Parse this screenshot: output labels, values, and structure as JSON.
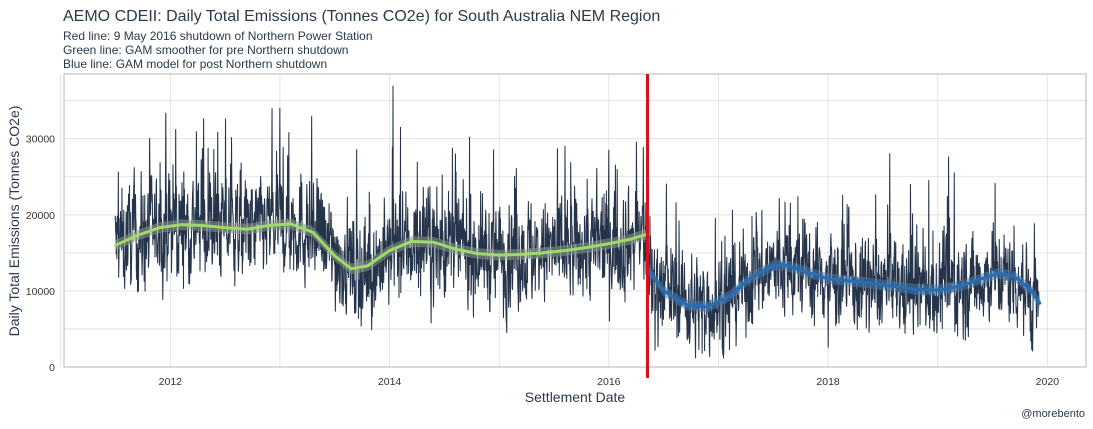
{
  "title": "AEMO CDEII: Daily Total Emissions (Tonnes CO2e) for South Australia NEM Region",
  "subtitle_lines": [
    "Red line:  9 May 2016 shutdown of Northern Power Station",
    "Green line: GAM smoother for pre Northern shutdown",
    "Blue line: GAM model for post Northern shutdown"
  ],
  "caption": "@morebento",
  "colors": {
    "raw": "#25344a",
    "pre_gam": "#9fd86b",
    "pre_band": "#8a9a8a",
    "post_gam": "#2a6db0",
    "post_band": "#4a7fb5",
    "shutdown_line": "#d8101c",
    "grid": "#dedede",
    "panel_border": "#b5b5b5"
  },
  "chart_data": {
    "type": "line",
    "xlabel": "Settlement Date",
    "ylabel": "Daily Total Emissions (Tonnes CO2e)",
    "xlim": [
      "2011-01-12",
      "2020-05-09"
    ],
    "ylim": [
      0,
      38500
    ],
    "x_ticks": [
      "2012",
      "2014",
      "2016",
      "2018",
      "2020"
    ],
    "y_ticks": [
      "0",
      "10000",
      "20000",
      "30000"
    ],
    "grid": true,
    "shutdown_date": "2016-05-09",
    "raw_series": {
      "name": "Daily total emissions",
      "start": "2011-07-01",
      "end": "2019-12-05",
      "pre_mean": [
        [
          2011.5,
          16200
        ],
        [
          2011.8,
          17600
        ],
        [
          2012.1,
          18500
        ],
        [
          2012.4,
          18700
        ],
        [
          2012.7,
          18100
        ],
        [
          2013.0,
          18800
        ],
        [
          2013.2,
          18600
        ],
        [
          2013.45,
          15500
        ],
        [
          2013.7,
          12600
        ],
        [
          2013.95,
          14200
        ],
        [
          2014.2,
          16400
        ],
        [
          2014.45,
          16100
        ],
        [
          2014.7,
          15400
        ],
        [
          2014.95,
          14700
        ],
        [
          2015.2,
          14900
        ],
        [
          2015.45,
          15200
        ],
        [
          2015.7,
          15600
        ],
        [
          2015.95,
          16100
        ],
        [
          2016.2,
          16900
        ],
        [
          2016.35,
          17400
        ]
      ],
      "post_mean": [
        [
          2016.36,
          12300
        ],
        [
          2016.55,
          10200
        ],
        [
          2016.8,
          8000
        ],
        [
          2017.05,
          8700
        ],
        [
          2017.35,
          12300
        ],
        [
          2017.6,
          13300
        ],
        [
          2017.85,
          12400
        ],
        [
          2018.1,
          11400
        ],
        [
          2018.4,
          10900
        ],
        [
          2018.7,
          10500
        ],
        [
          2019.0,
          10200
        ],
        [
          2019.3,
          11200
        ],
        [
          2019.5,
          12300
        ],
        [
          2019.7,
          11600
        ],
        [
          2019.92,
          8300
        ]
      ],
      "pre_spread": 5200,
      "post_spread": 4600,
      "spikes": [
        [
          2012.05,
          31200
        ],
        [
          2013.0,
          34000
        ],
        [
          2013.08,
          30800
        ],
        [
          2014.03,
          36900
        ],
        [
          2014.1,
          31500
        ],
        [
          2014.6,
          28000
        ],
        [
          2015.6,
          29000
        ],
        [
          2016.0,
          28500
        ],
        [
          2016.06,
          26500
        ],
        [
          2016.42,
          2200
        ],
        [
          2016.85,
          1800
        ],
        [
          2017.1,
          2300
        ],
        [
          2018.0,
          2600
        ],
        [
          2019.1,
          27600
        ],
        [
          2019.15,
          25500
        ],
        [
          2018.75,
          24000
        ],
        [
          2019.85,
          3400
        ]
      ]
    },
    "series": [
      {
        "name": "GAM smoother for pre Northern shutdown",
        "x": [
          2011.5,
          2011.7,
          2011.9,
          2012.1,
          2012.3,
          2012.5,
          2012.7,
          2012.9,
          2013.1,
          2013.3,
          2013.5,
          2013.65,
          2013.8,
          2014.0,
          2014.2,
          2014.4,
          2014.6,
          2014.8,
          2015.0,
          2015.2,
          2015.4,
          2015.6,
          2015.8,
          2016.0,
          2016.2,
          2016.36
        ],
        "y": [
          16000,
          17300,
          18300,
          18700,
          18600,
          18300,
          18100,
          18600,
          18800,
          17700,
          14600,
          12900,
          13300,
          15300,
          16500,
          16400,
          15500,
          14900,
          14700,
          14800,
          15000,
          15300,
          15700,
          16200,
          16800,
          17500
        ]
      },
      {
        "name": "GAM model for post Northern shutdown",
        "x": [
          2016.36,
          2016.5,
          2016.7,
          2016.9,
          2017.1,
          2017.3,
          2017.5,
          2017.6,
          2017.8,
          2018.0,
          2018.2,
          2018.4,
          2018.6,
          2018.8,
          2019.0,
          2019.2,
          2019.4,
          2019.55,
          2019.7,
          2019.85,
          2019.93
        ],
        "y": [
          12800,
          10000,
          8200,
          7900,
          9300,
          11800,
          13300,
          13400,
          12500,
          11600,
          11300,
          11000,
          10600,
          10200,
          10100,
          10600,
          11600,
          12300,
          11900,
          10100,
          8400
        ]
      }
    ]
  }
}
